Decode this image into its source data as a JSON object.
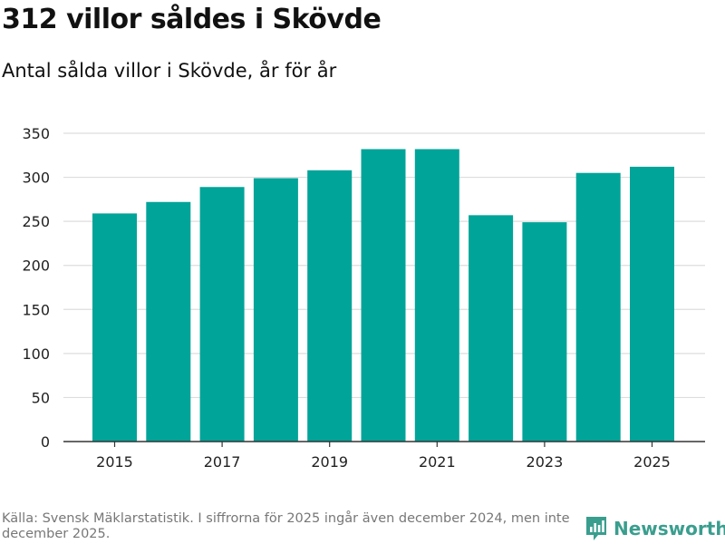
{
  "header": {
    "title": "312 villor såldes i Skövde",
    "subtitle": "Antal sålda villor i Skövde, år för år"
  },
  "footer": {
    "source": "Källa: Svensk Mäklarstatistik. I siffrorna för 2025 ingår även december 2024, men inte december 2025.",
    "brand": "Newsworthy"
  },
  "colors": {
    "bar": "#00a499",
    "grid": "#dddddd",
    "axis": "#333333",
    "brand": "#3a9e8e"
  },
  "chart_data": {
    "type": "bar",
    "title": "312 villor såldes i Skövde",
    "subtitle": "Antal sålda villor i Skövde, år för år",
    "xlabel": "",
    "ylabel": "",
    "categories": [
      "2015",
      "2016",
      "2017",
      "2018",
      "2019",
      "2020",
      "2021",
      "2022",
      "2023",
      "2024",
      "2025"
    ],
    "values": [
      259,
      272,
      289,
      299,
      308,
      332,
      332,
      257,
      249,
      305,
      312
    ],
    "x_tick_labels": [
      "2015",
      "2017",
      "2019",
      "2021",
      "2023",
      "2025"
    ],
    "y_ticks": [
      0,
      50,
      100,
      150,
      200,
      250,
      300,
      350
    ],
    "ylim": [
      0,
      350
    ],
    "grid": true,
    "legend": "none"
  }
}
